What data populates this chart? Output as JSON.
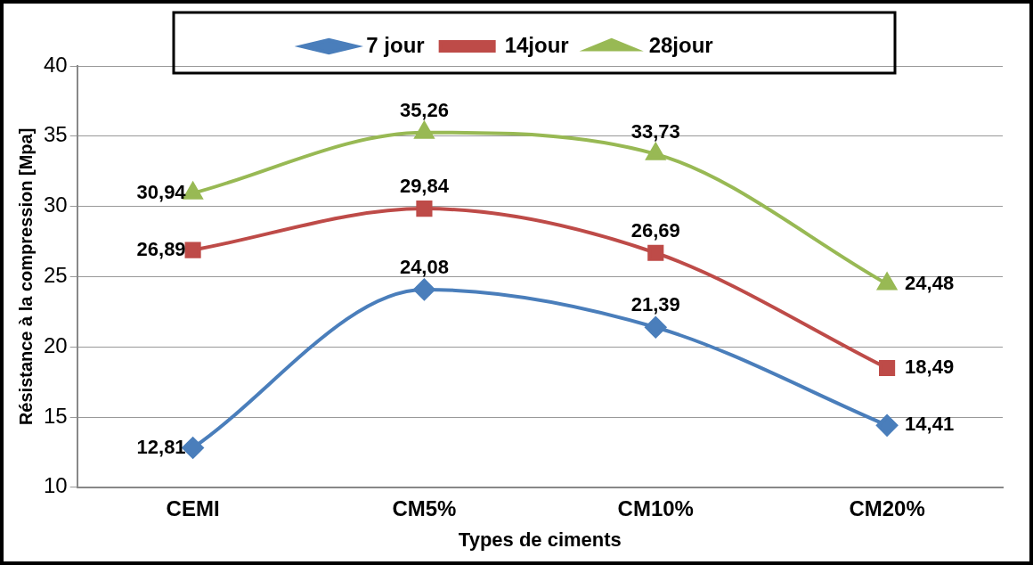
{
  "chart_data": {
    "type": "line",
    "xlabel": "Types de ciments",
    "ylabel": "Résistance à la compression [Mpa]",
    "categories": [
      "CEMI",
      "CM5%",
      "CM10%",
      "CM20%"
    ],
    "series": [
      {
        "name": "7 jour",
        "color": "#4a7ebb",
        "marker": "diamond",
        "values": [
          12.81,
          24.08,
          21.39,
          14.41
        ],
        "value_labels": [
          "12,81",
          "24,08",
          "21,39",
          "14,41"
        ]
      },
      {
        "name": "14jour",
        "color": "#be4b48",
        "marker": "square",
        "values": [
          26.89,
          29.84,
          26.69,
          18.49
        ],
        "value_labels": [
          "26,89",
          "29,84",
          "26,69",
          "18,49"
        ]
      },
      {
        "name": "28jour",
        "color": "#98b954",
        "marker": "triangle",
        "values": [
          30.94,
          35.26,
          33.73,
          24.48
        ],
        "value_labels": [
          "30,94",
          "35,26",
          "33,73",
          "24,48"
        ]
      }
    ],
    "ylim": [
      10,
      40
    ],
    "yticks": [
      10,
      15,
      20,
      25,
      30,
      35,
      40
    ],
    "grid": "y",
    "legend": "top",
    "line_style": "solid"
  }
}
